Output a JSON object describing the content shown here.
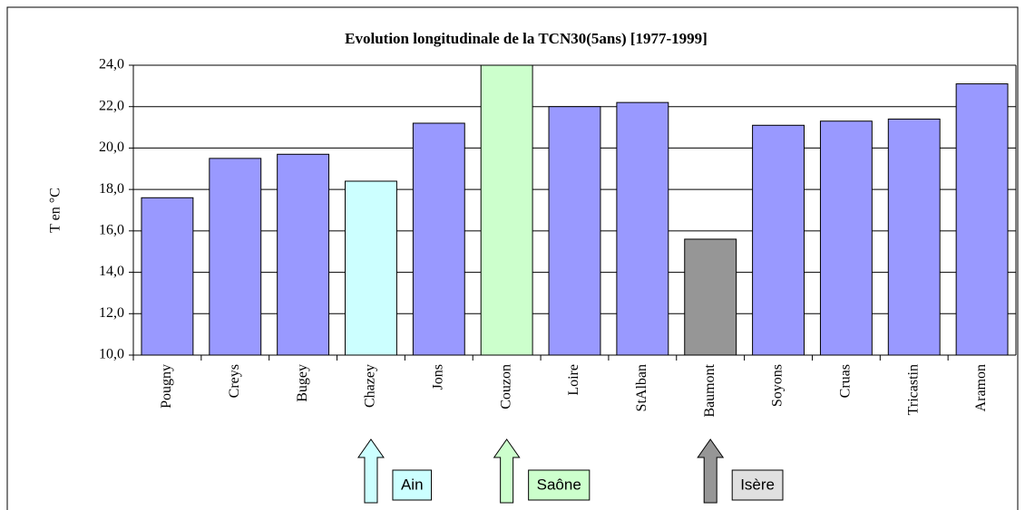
{
  "chart_data": {
    "type": "bar",
    "title": "Evolution longitudinale de la TCN30(5ans)  [1977-1999]",
    "y_label": "T en °C",
    "categories": [
      "Pougny",
      "Creys",
      "Bugey",
      "Chazey",
      "Jons",
      "Couzon",
      "Loire",
      "StAlban",
      "Baumont",
      "Soyons",
      "Cruas",
      "Tricastin",
      "Aramon"
    ],
    "values": [
      17.6,
      19.5,
      19.7,
      18.4,
      21.2,
      24.0,
      22.0,
      22.2,
      15.6,
      21.1,
      21.3,
      21.4,
      23.1
    ],
    "colors": [
      "#9999ff",
      "#9999ff",
      "#9999ff",
      "#ccffff",
      "#9999ff",
      "#ccffcc",
      "#9999ff",
      "#9999ff",
      "#969696",
      "#9999ff",
      "#9999ff",
      "#9999ff",
      "#9999ff"
    ],
    "ylim": [
      10,
      24
    ],
    "yticks": [
      {
        "value": 10,
        "label": "10,0"
      },
      {
        "value": 12,
        "label": "12,0"
      },
      {
        "value": 14,
        "label": "14,0"
      },
      {
        "value": 16,
        "label": "16,0"
      },
      {
        "value": 18,
        "label": "18,0"
      },
      {
        "value": 20,
        "label": "20,0"
      },
      {
        "value": 22,
        "label": "22,0"
      },
      {
        "value": 24,
        "label": "24,0"
      }
    ],
    "grid": true,
    "annotations": [
      {
        "text": "Ain",
        "category": "Chazey",
        "color": "#ccffff"
      },
      {
        "text": "Saône",
        "category": "Couzon",
        "color": "#ccffcc"
      },
      {
        "text": "Isère",
        "category": "Baumont",
        "color": "#969696",
        "label_color": "#e0e0e0"
      }
    ]
  }
}
